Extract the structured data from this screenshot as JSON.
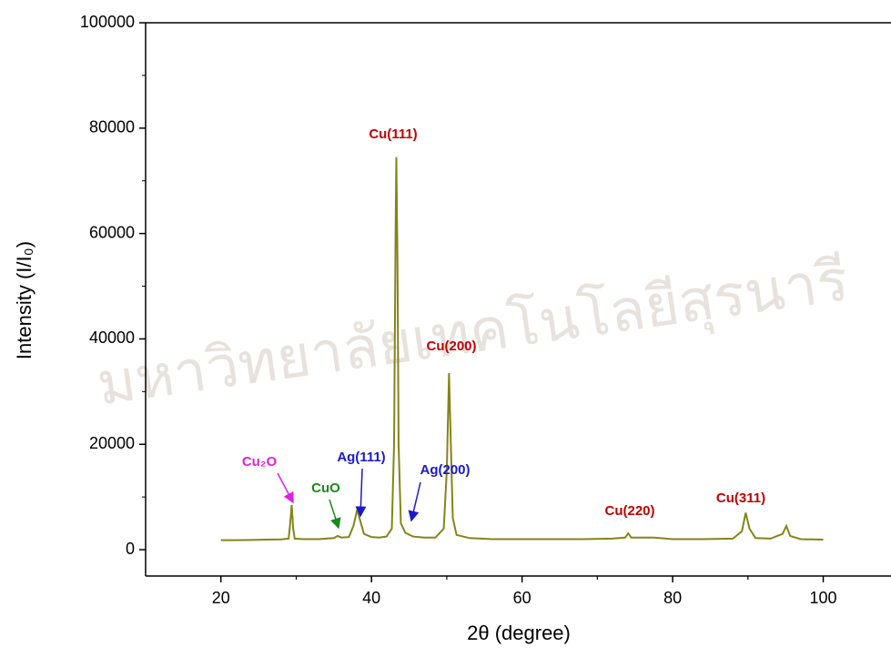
{
  "chart_data": {
    "type": "line",
    "x_label": "2θ (degree)",
    "y_label": "Intensity (I/I₀)",
    "watermark": "มหาวิทยาลัยเทคโนโลยีสุรนารี",
    "xlim": [
      10,
      109
    ],
    "xticks": [
      20,
      40,
      60,
      80,
      100
    ],
    "ylim": [
      -5000,
      100000
    ],
    "yticks": [
      0,
      20000,
      40000,
      60000,
      80000,
      100000
    ],
    "series": [
      {
        "color": "#84841a",
        "x": [
          20,
          22,
          24,
          26,
          28,
          29.0,
          29.2,
          29.4,
          29.6,
          29.8,
          31,
          33,
          35,
          35.5,
          36,
          37,
          37.6,
          38.1,
          38.5,
          39,
          40,
          41,
          42,
          42.7,
          43.0,
          43.2,
          43.3,
          43.45,
          43.6,
          43.9,
          44.5,
          45.5,
          47,
          48.5,
          49.6,
          50.0,
          50.3,
          50.5,
          50.8,
          51.3,
          53,
          56,
          60,
          64,
          68,
          72,
          73.7,
          74.1,
          74.5,
          77.5,
          80,
          84,
          88,
          89.2,
          89.7,
          90.2,
          91,
          93,
          94.6,
          95.1,
          95.6,
          97,
          100
        ],
        "values": [
          1800,
          1800,
          1850,
          1900,
          1950,
          2100,
          5000,
          8500,
          4000,
          2100,
          2000,
          2000,
          2200,
          2600,
          2300,
          2400,
          4500,
          7600,
          5500,
          3000,
          2400,
          2300,
          2500,
          4000,
          20000,
          60000,
          74500,
          55000,
          20000,
          5000,
          3200,
          2500,
          2300,
          2300,
          4000,
          15000,
          33500,
          22000,
          6000,
          2800,
          2200,
          2000,
          2000,
          2000,
          2000,
          2100,
          2300,
          3100,
          2300,
          2300,
          2000,
          2000,
          2100,
          3500,
          7000,
          4000,
          2200,
          2100,
          3000,
          4500,
          2600,
          2000,
          1900
        ]
      }
    ],
    "annotations": [
      {
        "text": "Cu(111)",
        "color": "#c00000"
      },
      {
        "text": "Cu(200)",
        "color": "#c00000"
      },
      {
        "text": "Cu(220)",
        "color": "#c00000"
      },
      {
        "text": "Cu(311)",
        "color": "#c00000"
      },
      {
        "text": "Cu₂O",
        "color": "#e020e0"
      },
      {
        "text": "CuO",
        "color": "#1a8a1a"
      },
      {
        "text": "Ag(111)",
        "color": "#1a1acc"
      },
      {
        "text": "Ag(200)",
        "color": "#1a1acc"
      }
    ]
  }
}
